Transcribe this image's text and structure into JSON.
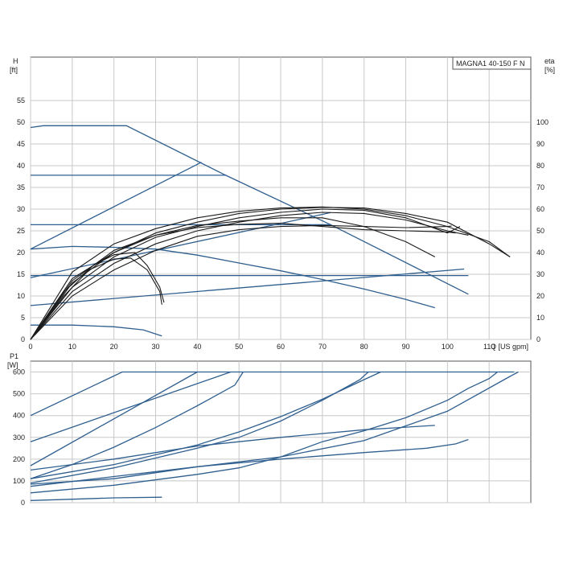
{
  "chart_data": [
    {
      "type": "line",
      "model_label": "MAGNA1 40-150 F N",
      "x_axis_label": "Q [US gpm]",
      "x_ticks": [
        0,
        10,
        20,
        30,
        40,
        50,
        60,
        70,
        80,
        90,
        100,
        110
      ],
      "xlim": [
        0,
        120
      ],
      "y_axis_label": [
        "H",
        "[ft]"
      ],
      "y_ticks": [
        0,
        5,
        10,
        15,
        20,
        25,
        30,
        35,
        40,
        45,
        50,
        55
      ],
      "ylim": [
        0,
        65
      ],
      "y2_axis_label": [
        "eta",
        "[%]"
      ],
      "y2_ticks": [
        0,
        10,
        20,
        30,
        40,
        50,
        60,
        70,
        80,
        90,
        100
      ],
      "y2lim": [
        0,
        130
      ],
      "grid": true,
      "head_curves": [
        {
          "style": "pump",
          "points": [
            [
              0,
              48.8
            ],
            [
              3,
              49.2
            ],
            [
              23,
              49.2
            ],
            [
              47,
              37.7
            ],
            [
              72,
              26.4
            ],
            [
              105,
              10.4
            ]
          ]
        },
        {
          "style": "pump",
          "points": [
            [
              0,
              37.8
            ],
            [
              47,
              37.8
            ]
          ]
        },
        {
          "style": "pump",
          "points": [
            [
              0,
              26.4
            ],
            [
              72,
              26.4
            ]
          ]
        },
        {
          "style": "pump",
          "points": [
            [
              0,
              14.7
            ],
            [
              105,
              14.7
            ]
          ]
        },
        {
          "style": "pump",
          "points": [
            [
              0,
              20.8
            ],
            [
              41,
              40.8
            ]
          ]
        },
        {
          "style": "pump",
          "points": [
            [
              0,
              14.2
            ],
            [
              72,
              29.2
            ]
          ]
        },
        {
          "style": "pump",
          "points": [
            [
              0,
              7.8
            ],
            [
              104,
              16.2
            ]
          ]
        },
        {
          "style": "pump",
          "points": [
            [
              0,
              20.8
            ],
            [
              10,
              21.4
            ],
            [
              20,
              21.2
            ],
            [
              30,
              20.8
            ],
            [
              40,
              19.4
            ],
            [
              50,
              17.6
            ],
            [
              60,
              15.8
            ],
            [
              70,
              13.8
            ],
            [
              80,
              11.6
            ],
            [
              90,
              9.2
            ],
            [
              97,
              7.3
            ]
          ]
        },
        {
          "style": "pump",
          "points": [
            [
              0,
              3.3
            ],
            [
              10,
              3.3
            ],
            [
              20,
              2.9
            ],
            [
              27,
              2.2
            ],
            [
              31.5,
              0.8
            ]
          ]
        }
      ],
      "eta_curves": [
        {
          "points": [
            [
              0,
              0
            ],
            [
              10,
              31
            ],
            [
              20,
              44
            ],
            [
              30,
              51
            ],
            [
              40,
              56
            ],
            [
              50,
              59
            ],
            [
              60,
              60.5
            ],
            [
              70,
              61
            ],
            [
              80,
              60
            ],
            [
              90,
              57
            ],
            [
              100,
              52
            ],
            [
              110,
              45
            ],
            [
              115,
              38
            ]
          ]
        },
        {
          "points": [
            [
              0,
              0
            ],
            [
              10,
              28
            ],
            [
              20,
              40
            ],
            [
              30,
              49
            ],
            [
              40,
              54
            ],
            [
              50,
              58
            ],
            [
              60,
              60
            ],
            [
              70,
              60.8
            ],
            [
              80,
              60.5
            ],
            [
              90,
              58
            ],
            [
              100,
              54
            ],
            [
              110,
              44
            ],
            [
              115,
              38
            ]
          ]
        },
        {
          "points": [
            [
              0,
              0
            ],
            [
              10,
              24
            ],
            [
              20,
              38
            ],
            [
              30,
              47
            ],
            [
              40,
              52
            ],
            [
              50,
              56
            ],
            [
              60,
              58.5
            ],
            [
              70,
              60
            ],
            [
              80,
              59.5
            ],
            [
              90,
              56
            ],
            [
              100,
              49
            ],
            [
              103,
              52
            ]
          ]
        },
        {
          "points": [
            [
              0,
              0
            ],
            [
              10,
              22
            ],
            [
              20,
              35
            ],
            [
              30,
              44
            ],
            [
              40,
              50
            ],
            [
              50,
              54
            ],
            [
              60,
              57
            ],
            [
              70,
              58.5
            ],
            [
              80,
              58
            ],
            [
              90,
              55
            ],
            [
              100,
              50
            ],
            [
              105,
              48
            ]
          ]
        },
        {
          "points": [
            [
              0,
              0
            ],
            [
              10,
              26
            ],
            [
              20,
              40
            ],
            [
              30,
              48
            ],
            [
              40,
              52.5
            ],
            [
              50,
              54.5
            ],
            [
              60,
              56
            ],
            [
              70,
              56
            ],
            [
              80,
              52
            ],
            [
              90,
              45
            ],
            [
              97,
              38
            ]
          ]
        },
        {
          "points": [
            [
              0,
              0
            ],
            [
              10,
              27
            ],
            [
              20,
              41
            ],
            [
              30,
              48
            ],
            [
              40,
              51.5
            ],
            [
              50,
              53
            ],
            [
              60,
              53.5
            ],
            [
              70,
              52
            ],
            [
              80,
              50.5
            ],
            [
              90,
              50
            ],
            [
              100,
              49.5
            ],
            [
              102,
              49
            ]
          ]
        },
        {
          "points": [
            [
              0,
              0
            ],
            [
              10,
              20
            ],
            [
              20,
              32
            ],
            [
              30,
              41
            ],
            [
              40,
              47.5
            ],
            [
              50,
              50.5
            ],
            [
              60,
              52
            ],
            [
              70,
              52.5
            ],
            [
              80,
              52
            ],
            [
              90,
              51.5
            ],
            [
              100,
              52
            ],
            [
              101,
              52.2
            ]
          ]
        },
        {
          "points": [
            [
              0,
              0
            ],
            [
              8,
              22
            ],
            [
              15,
              34
            ],
            [
              20,
              39
            ],
            [
              25,
              40
            ],
            [
              28,
              34
            ],
            [
              31,
              24
            ],
            [
              32,
              17
            ]
          ]
        },
        {
          "points": [
            [
              0,
              0
            ],
            [
              8,
              20
            ],
            [
              14,
              32
            ],
            [
              20,
              37
            ],
            [
              24,
              37.5
            ],
            [
              28,
              32
            ],
            [
              31,
              22
            ],
            [
              31.5,
              16
            ]
          ]
        }
      ]
    },
    {
      "type": "line",
      "x_axis_label": "",
      "xlim": [
        0,
        120
      ],
      "y_axis_label": [
        "P1",
        "[W]"
      ],
      "y_ticks": [
        0,
        100,
        200,
        300,
        400,
        500,
        600
      ],
      "ylim": [
        0,
        650
      ],
      "grid": true,
      "power_curves": [
        {
          "points": [
            [
              0,
              400
            ],
            [
              22,
              600
            ],
            [
              116,
              600
            ]
          ]
        },
        {
          "points": [
            [
              0,
              280
            ],
            [
              48,
              600
            ]
          ]
        },
        {
          "points": [
            [
              0,
              170
            ],
            [
              40,
              600
            ]
          ]
        },
        {
          "points": [
            [
              0,
              110
            ],
            [
              10,
              175
            ],
            [
              20,
              255
            ],
            [
              30,
              345
            ],
            [
              40,
              445
            ],
            [
              49,
              540
            ],
            [
              51,
              600
            ]
          ]
        },
        {
          "points": [
            [
              0,
              90
            ],
            [
              20,
              160
            ],
            [
              40,
              250
            ],
            [
              50,
              300
            ],
            [
              60,
              375
            ],
            [
              70,
              470
            ],
            [
              79,
              565
            ],
            [
              81,
              600
            ]
          ]
        },
        {
          "points": [
            [
              0,
              110
            ],
            [
              20,
              175
            ],
            [
              40,
              265
            ],
            [
              50,
              325
            ],
            [
              60,
              395
            ],
            [
              70,
              475
            ],
            [
              80,
              565
            ],
            [
              84,
              600
            ]
          ]
        },
        {
          "points": [
            [
              0,
              75
            ],
            [
              20,
              120
            ],
            [
              40,
              165
            ],
            [
              60,
              200
            ],
            [
              80,
              230
            ],
            [
              95,
              250
            ],
            [
              102,
              270
            ],
            [
              105,
              290
            ]
          ]
        },
        {
          "points": [
            [
              0,
              45
            ],
            [
              20,
              80
            ],
            [
              40,
              130
            ],
            [
              50,
              160
            ],
            [
              60,
              210
            ],
            [
              70,
              280
            ],
            [
              80,
              330
            ],
            [
              90,
              390
            ],
            [
              100,
              470
            ],
            [
              105,
              525
            ],
            [
              110,
              570
            ],
            [
              112,
              600
            ]
          ]
        },
        {
          "points": [
            [
              0,
              85
            ],
            [
              20,
              110
            ],
            [
              40,
              165
            ],
            [
              60,
              210
            ],
            [
              80,
              285
            ],
            [
              100,
              420
            ],
            [
              115,
              580
            ],
            [
              117,
              600
            ]
          ]
        },
        {
          "points": [
            [
              0,
              150
            ],
            [
              20,
              200
            ],
            [
              40,
              260
            ],
            [
              60,
              300
            ],
            [
              80,
              335
            ],
            [
              97,
              355
            ]
          ]
        },
        {
          "points": [
            [
              0,
              10
            ],
            [
              10,
              16
            ],
            [
              20,
              22
            ],
            [
              31.5,
              25
            ]
          ]
        }
      ]
    }
  ]
}
